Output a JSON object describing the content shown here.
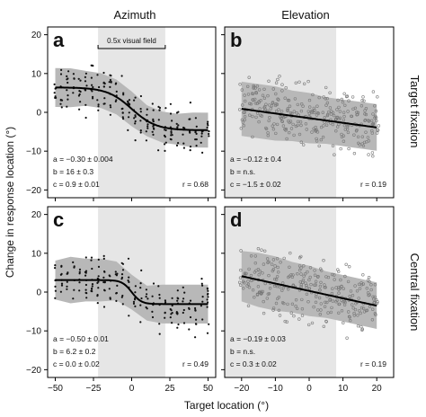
{
  "figure": {
    "column_titles": [
      "Azimuth",
      "Elevation"
    ],
    "row_labels": [
      "Target fixation",
      "Central fixation"
    ],
    "y_axis_title": "Change in response location (°)",
    "x_axis_title": "Target location (°)",
    "colors": {
      "band": "#b8b8b8",
      "shade": "#e6e6e6",
      "curve": "#000000",
      "point": "#111111",
      "frame": "#000000"
    }
  },
  "chart_data": [
    {
      "type": "scatter",
      "panel": "a",
      "column": "Azimuth",
      "row": "Target fixation",
      "xlim": [
        -55,
        55
      ],
      "ylim": [
        -22,
        22
      ],
      "xticks": [
        -50,
        -25,
        0,
        25,
        50
      ],
      "yticks": [
        -20,
        -10,
        0,
        10,
        20
      ],
      "x_tick_labels_shown": false,
      "y_tick_labels_shown": true,
      "shaded_x_range": [
        -22,
        22
      ],
      "bracket": {
        "label": "0.5x visual field",
        "x_range": [
          -22,
          22
        ]
      },
      "marker": "filled",
      "point_spread": 4.5,
      "curve": {
        "a": -0.3,
        "b": 16,
        "c": 0.9
      },
      "band": {
        "x": [
          -50,
          -40,
          -30,
          -20,
          -10,
          0,
          10,
          20,
          30,
          40,
          50
        ],
        "half_width": [
          5,
          5,
          4.5,
          4.5,
          4.5,
          4.5,
          4,
          4,
          4,
          4.5,
          4.5
        ]
      },
      "params": [
        "a = −0.30 ± 0.004",
        "b = 16 ± 0.3",
        "c = 0.9 ± 0.01"
      ],
      "r_label": "r = 0.68"
    },
    {
      "type": "scatter",
      "panel": "b",
      "column": "Elevation",
      "row": "Target fixation",
      "xlim": [
        -25,
        25
      ],
      "ylim": [
        -22,
        22
      ],
      "xticks": [
        -20,
        -10,
        0,
        10,
        20
      ],
      "yticks": [
        -20,
        -10,
        0,
        10,
        20
      ],
      "x_tick_labels_shown": false,
      "y_tick_labels_shown": false,
      "shaded_x_range": [
        -25,
        8
      ],
      "marker": "open",
      "point_spread": 6,
      "curve": {
        "a": -0.12,
        "b": 0,
        "c": -1.5
      },
      "band": {
        "x": [
          -20,
          -15,
          -10,
          -5,
          0,
          5,
          10,
          15,
          20
        ],
        "half_width": [
          7,
          7,
          7,
          6.5,
          6.5,
          6,
          6,
          6,
          6
        ]
      },
      "params": [
        "a = −0.12 ± 0.4",
        "b = n.s.",
        "c = −1.5 ± 0.02"
      ],
      "r_label": "r = 0.19"
    },
    {
      "type": "scatter",
      "panel": "c",
      "column": "Azimuth",
      "row": "Central fixation",
      "xlim": [
        -55,
        55
      ],
      "ylim": [
        -22,
        22
      ],
      "xticks": [
        -50,
        -25,
        0,
        25,
        50
      ],
      "yticks": [
        -20,
        -10,
        0,
        10,
        20
      ],
      "x_tick_labels_shown": true,
      "y_tick_labels_shown": true,
      "shaded_x_range": [
        -22,
        22
      ],
      "marker": "filled",
      "point_spread": 5,
      "curve": {
        "a": -0.5,
        "b": 6.2,
        "c": 0.0
      },
      "band": {
        "x": [
          -50,
          -40,
          -30,
          -20,
          -10,
          0,
          10,
          20,
          30,
          40,
          50
        ],
        "half_width": [
          5,
          6,
          5.5,
          5.5,
          5,
          4.5,
          4.5,
          5,
          5,
          5,
          5
        ]
      },
      "params": [
        "a = −0.50 ± 0.01",
        "b = 6.2 ± 0.2",
        "c = 0.0 ± 0.02"
      ],
      "r_label": "r = 0.49"
    },
    {
      "type": "scatter",
      "panel": "d",
      "column": "Elevation",
      "row": "Central fixation",
      "xlim": [
        -25,
        25
      ],
      "ylim": [
        -22,
        22
      ],
      "xticks": [
        -20,
        -10,
        0,
        10,
        20
      ],
      "yticks": [
        -20,
        -10,
        0,
        10,
        20
      ],
      "x_tick_labels_shown": true,
      "y_tick_labels_shown": false,
      "shaded_x_range": [
        -25,
        8
      ],
      "marker": "open",
      "point_spread": 6,
      "curve": {
        "a": -0.19,
        "b": 0,
        "c": 0.3
      },
      "band": {
        "x": [
          -20,
          -15,
          -10,
          -5,
          0,
          5,
          10,
          15,
          20
        ],
        "half_width": [
          6.5,
          7,
          7,
          6.5,
          6.5,
          6,
          6,
          6,
          6
        ]
      },
      "params": [
        "a = −0.19 ± 0.03",
        "b = n.s.",
        "c = 0.3 ± 0.02"
      ],
      "r_label": "r = 0.19"
    }
  ]
}
